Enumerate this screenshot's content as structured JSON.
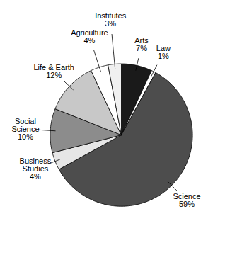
{
  "chart_data": {
    "type": "pie",
    "categories": [
      "Arts",
      "Law",
      "Science",
      "Business Studies",
      "Social Science",
      "Life & Earth",
      "Agriculture",
      "Institutes"
    ],
    "values": [
      7,
      1,
      59,
      4,
      10,
      12,
      4,
      3
    ],
    "value_labels": [
      "7%",
      "1%",
      "59%",
      "4%",
      "10%",
      "12%",
      "4%",
      "3%"
    ],
    "colors": [
      "#1a1a1a",
      "#ffffff",
      "#4d4d4d",
      "#e6e6e6",
      "#8c8c8c",
      "#c8c8c8",
      "#ffffff",
      "#f0f0f0"
    ],
    "data_labels": true
  }
}
